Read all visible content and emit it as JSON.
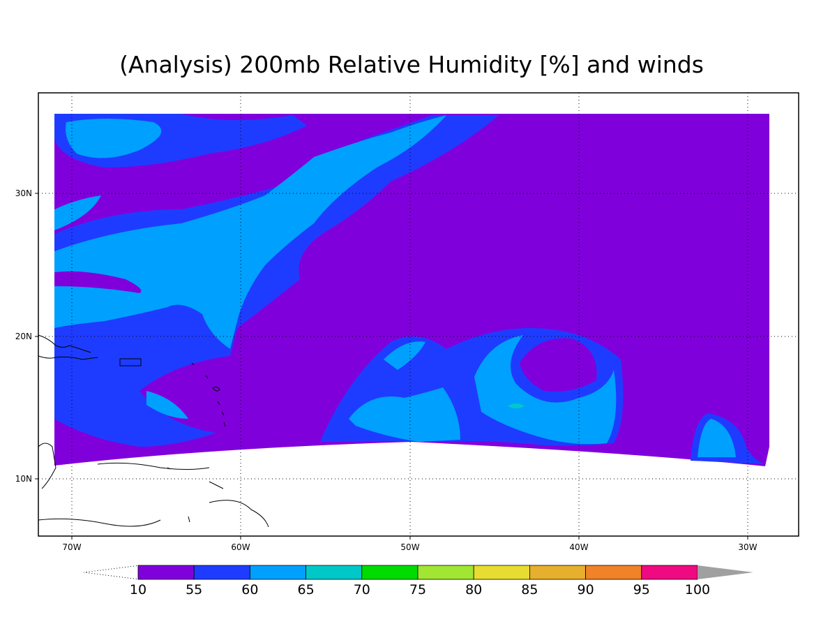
{
  "title": "(Analysis) 200mb Relative Humidity [%] and winds",
  "lat_labels": [
    "30N",
    "20N",
    "10N"
  ],
  "lon_labels": [
    "70W",
    "60W",
    "50W",
    "40W",
    "30W"
  ],
  "colorbar": {
    "levels": [
      10,
      55,
      60,
      65,
      70,
      75,
      80,
      85,
      90,
      95,
      100
    ],
    "colors": [
      "#8000dc",
      "#1e3cff",
      "#00a0ff",
      "#00c8c8",
      "#00dc00",
      "#a0e632",
      "#e6dc32",
      "#e6af2d",
      "#f08228",
      "#f00a82"
    ],
    "over_color": "#a0a0a0"
  }
}
